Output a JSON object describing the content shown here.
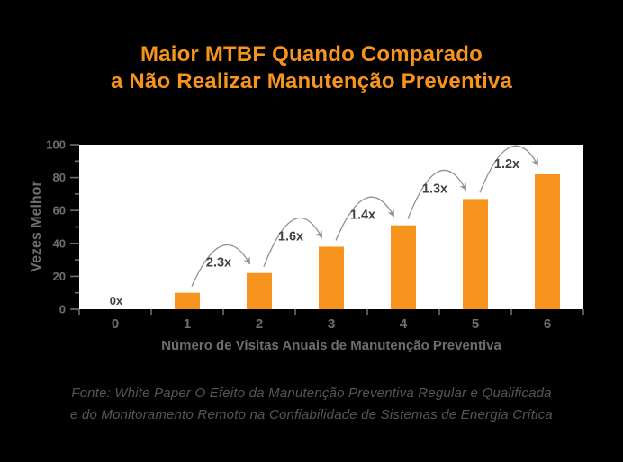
{
  "page": {
    "background": "#000000"
  },
  "title": {
    "line1": "Maior MTBF Quando Comparado",
    "line2": "a Não Realizar Manutenção Preventiva",
    "color": "#F7941E"
  },
  "chart_data": {
    "type": "bar",
    "title": "Maior MTBF Quando Comparado a Não Realizar Manutenção Preventiva",
    "categories": [
      "0",
      "1",
      "2",
      "3",
      "4",
      "5",
      "6"
    ],
    "values": [
      0,
      10,
      22,
      38,
      51,
      67,
      82
    ],
    "zero_label": "0x",
    "growth_arrows": [
      {
        "from": 1,
        "to": 2,
        "label": "2.3x"
      },
      {
        "from": 2,
        "to": 3,
        "label": "1.6x"
      },
      {
        "from": 3,
        "to": 4,
        "label": "1.4x"
      },
      {
        "from": 4,
        "to": 5,
        "label": "1.3x"
      },
      {
        "from": 5,
        "to": 6,
        "label": "1.2x"
      }
    ],
    "xlabel": "Número de Visitas Anuais de Manutenção Preventiva",
    "ylabel": "Vezes Melhor",
    "ylim": [
      0,
      100
    ],
    "ytick_step": 20,
    "ytick_minor_step": 10,
    "grid": false,
    "legend": "none",
    "colors": {
      "bar": "#F7941E",
      "plot_bg": "#FFFFFF",
      "page_bg": "#000000",
      "axis_text": "#6D6E71",
      "annotation_text": "#414042",
      "arrow": "#8F9193",
      "footer_text": "#55565A"
    }
  },
  "footer": {
    "line1": "Fonte: White Paper O Efeito da Manutenção Preventiva Regular e Qualificada",
    "line2": "e do Monitoramento Remoto na Confiabilidade de Sistemas de Energia Crítica"
  }
}
